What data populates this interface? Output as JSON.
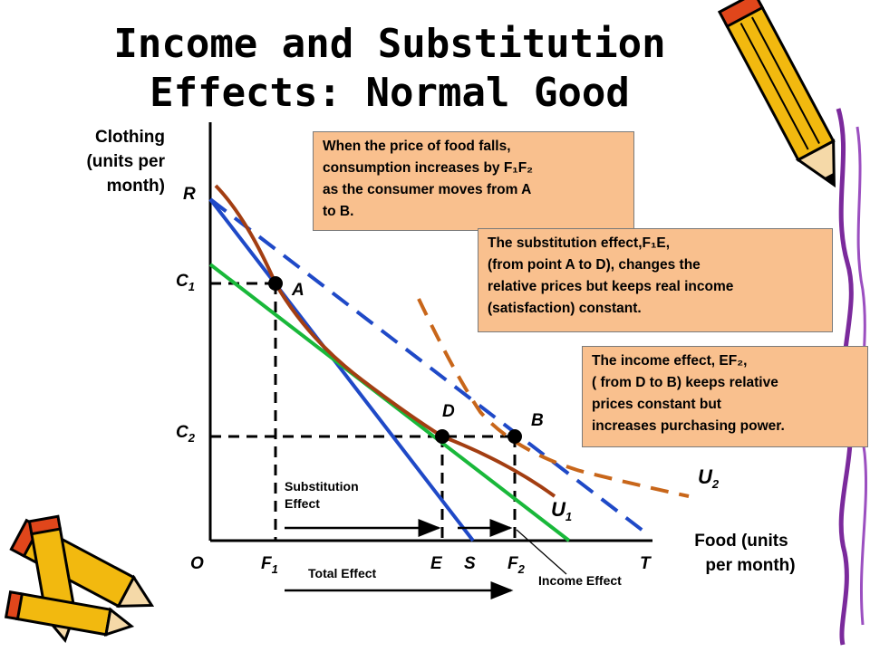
{
  "title": {
    "line1": "Income and Substitution",
    "line2": "Effects: Normal Good"
  },
  "axes": {
    "y_label": [
      "Clothing",
      "(units per",
      "month)"
    ],
    "x_label": [
      "Food (units",
      "per month)"
    ]
  },
  "points": {
    "origin": "O",
    "R": "R",
    "C1": "C",
    "C1_sub": "1",
    "C2": "C",
    "C2_sub": "2",
    "A": "A",
    "D": "D",
    "B": "B",
    "F1": "F",
    "F1_sub": "1",
    "E": "E",
    "S": "S",
    "F2": "F",
    "F2_sub": "2",
    "T": "T"
  },
  "curves": {
    "U1": "U",
    "U1_sub": "1",
    "U2": "U",
    "U2_sub": "2"
  },
  "effects": {
    "substitution_line1": "Substitution",
    "substitution_line2": "Effect",
    "total": "Total Effect",
    "income": "Income Effect"
  },
  "boxes": {
    "box1": [
      "When the price of food falls,",
      "consumption increases by F₁F₂",
      "as the consumer moves from  A",
      "to B."
    ],
    "box2": [
      "The substitution effect,F₁E,",
      "(from point A to D),  changes the",
      "relative prices but keeps real income",
      "(satisfaction) constant."
    ],
    "box3": [
      "The income effect, EF₂,",
      "( from D to B) keeps relative",
      "prices constant but",
      "increases purchasing power."
    ]
  },
  "colors": {
    "budget_original": "#1f49c7",
    "budget_new_dashed": "#1f49c7",
    "compensated_budget": "#19b83a",
    "indifference_U1": "#a33e12",
    "indifference_U2": "#c8661a",
    "box_fill": "#f9c08e",
    "point": "#000000"
  },
  "decorations": [
    "pencil-icon",
    "pencil-icon",
    "pencil-icon",
    "pencil-icon",
    "decorative-swirl"
  ]
}
